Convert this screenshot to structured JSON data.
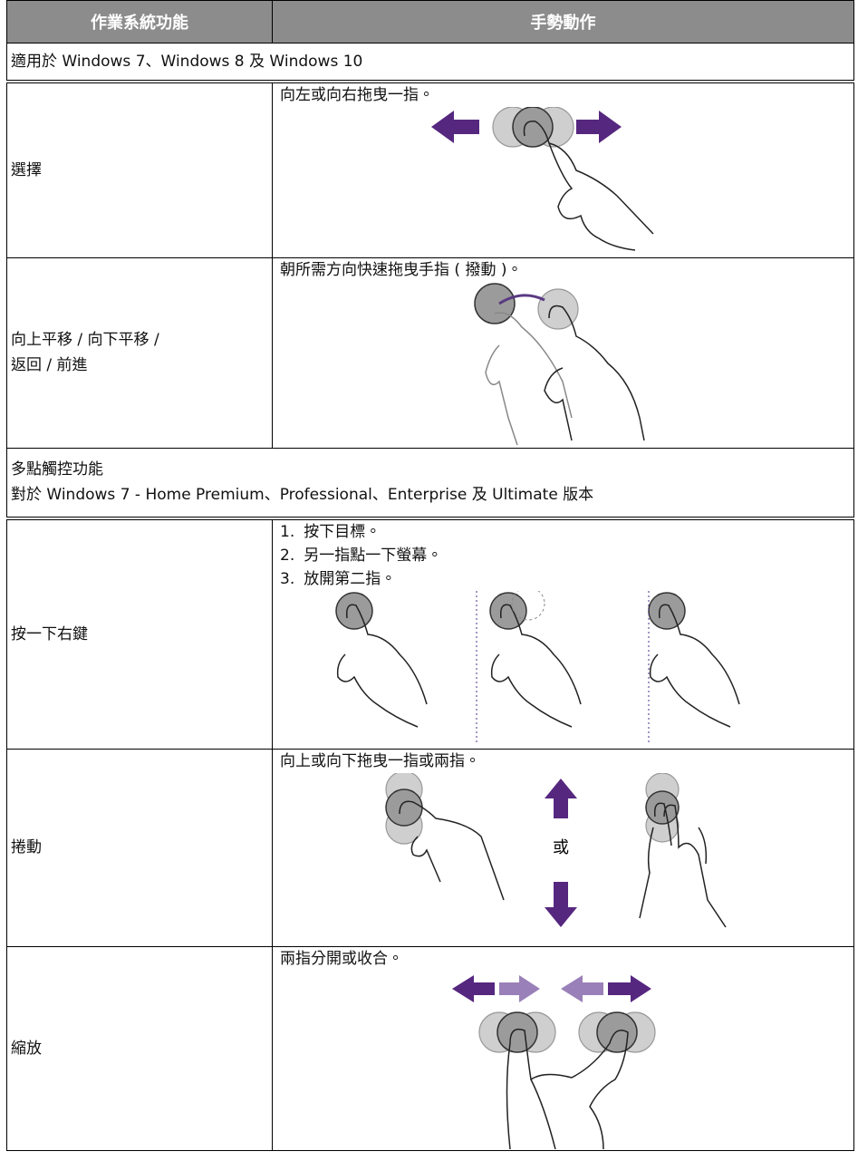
{
  "header": {
    "columns": [
      "作業系統功能",
      "手勢動作"
    ]
  },
  "sections": [
    {
      "title_lines": [
        "適用於 Windows 7、Windows 8 及 Windows 10"
      ],
      "rows": [
        {
          "function_lines": [
            "選擇"
          ],
          "gesture": "向左或向右拖曳一指。"
        },
        {
          "function_lines": [
            "向上平移 / 向下平移 /",
            "返回 / 前進"
          ],
          "gesture": "朝所需方向快速拖曳手指 ( 撥動 )。"
        }
      ]
    },
    {
      "title_lines": [
        "多點觸控功能",
        "對於 Windows 7 - Home Premium、Professional、Enterprise 及 Ultimate 版本"
      ],
      "rows": [
        {
          "function_lines": [
            "按一下右鍵"
          ],
          "steps": [
            {
              "number": "1.",
              "text": "按下目標。"
            },
            {
              "number": "2.",
              "text": "另一指點一下螢幕。"
            },
            {
              "number": "3.",
              "text": "放開第二指。"
            }
          ]
        },
        {
          "function_lines": [
            "捲動"
          ],
          "gesture": "向上或向下拖曳一指或兩指。",
          "illustration_text": "或"
        },
        {
          "function_lines": [
            "縮放"
          ],
          "gesture": "兩指分開或收合。"
        }
      ]
    }
  ]
}
